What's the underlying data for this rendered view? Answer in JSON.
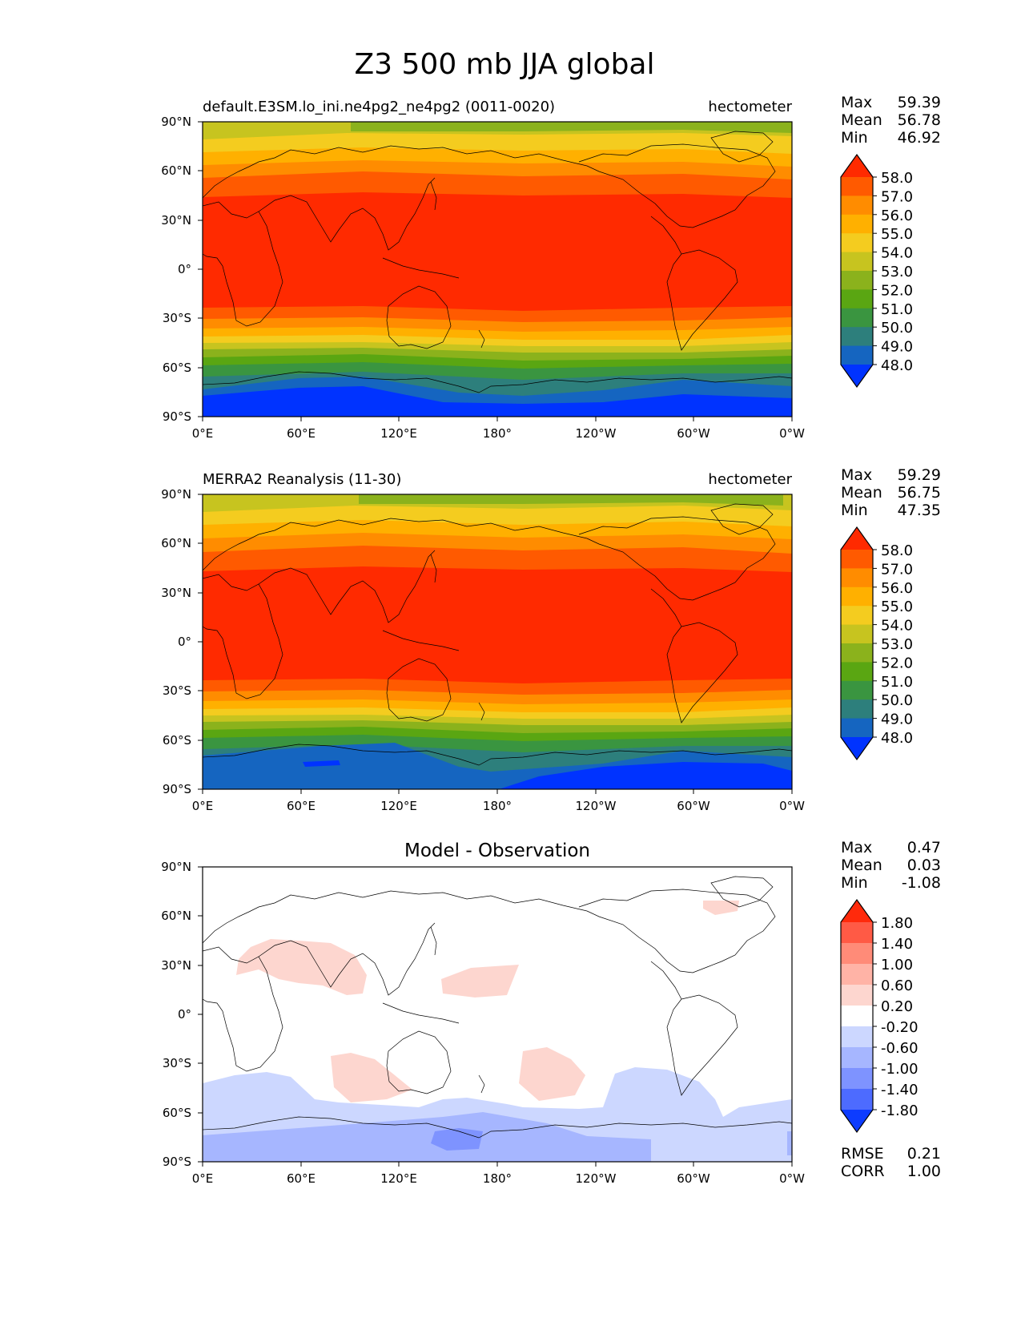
{
  "title": "Z3 500 mb JJA global",
  "map_axes": {
    "lat_ticks": [
      "90°N",
      "60°N",
      "30°N",
      "0°",
      "30°S",
      "60°S",
      "90°S"
    ],
    "lon_ticks": [
      "0°E",
      "60°E",
      "120°E",
      "180°",
      "120°W",
      "60°W",
      "0°W"
    ]
  },
  "colorbar_main": {
    "levels": [
      "58.0",
      "57.0",
      "56.0",
      "55.0",
      "54.0",
      "53.0",
      "52.0",
      "51.0",
      "50.0",
      "49.0",
      "48.0"
    ],
    "colors": [
      "#ff2a00",
      "#ff5a00",
      "#ff8c00",
      "#ffb000",
      "#f4cc1f",
      "#c7c41f",
      "#8bb21c",
      "#5aa612",
      "#3a9540",
      "#2d7f7c",
      "#1565c0",
      "#0033ff"
    ]
  },
  "colorbar_diff": {
    "levels": [
      "1.80",
      "1.40",
      "1.00",
      "0.60",
      "0.20",
      "-0.20",
      "-0.60",
      "-1.00",
      "-1.40",
      "-1.80"
    ],
    "colors": [
      "#ff2a0b",
      "#ff5a45",
      "#ff8b78",
      "#ffb3a6",
      "#fdd6cf",
      "#ffffff",
      "#ccd7ff",
      "#a6b6ff",
      "#7e93ff",
      "#4d6bff",
      "#0d3cff"
    ]
  },
  "panels": [
    {
      "left_title": "default.E3SM.lo_ini.ne4pg2_ne4pg2 (0011-0020)",
      "right_title": "hectometer",
      "center_title": "",
      "stats": [
        {
          "label": "Max",
          "value": "59.39"
        },
        {
          "label": "Mean",
          "value": "56.78"
        },
        {
          "label": "Min",
          "value": "46.92"
        }
      ]
    },
    {
      "left_title": "MERRA2 Reanalysis (11-30)",
      "right_title": "hectometer",
      "center_title": "",
      "stats": [
        {
          "label": "Max",
          "value": "59.29"
        },
        {
          "label": "Mean",
          "value": "56.75"
        },
        {
          "label": "Min",
          "value": "47.35"
        }
      ]
    },
    {
      "left_title": "",
      "right_title": "",
      "center_title": "Model - Observation",
      "stats": [
        {
          "label": "Max",
          "value": "0.47"
        },
        {
          "label": "Mean",
          "value": "0.03"
        },
        {
          "label": "Min",
          "value": "-1.08"
        }
      ],
      "extra_stats": [
        {
          "label": "RMSE",
          "value": "0.21"
        },
        {
          "label": "CORR",
          "value": "1.00"
        }
      ]
    }
  ]
}
